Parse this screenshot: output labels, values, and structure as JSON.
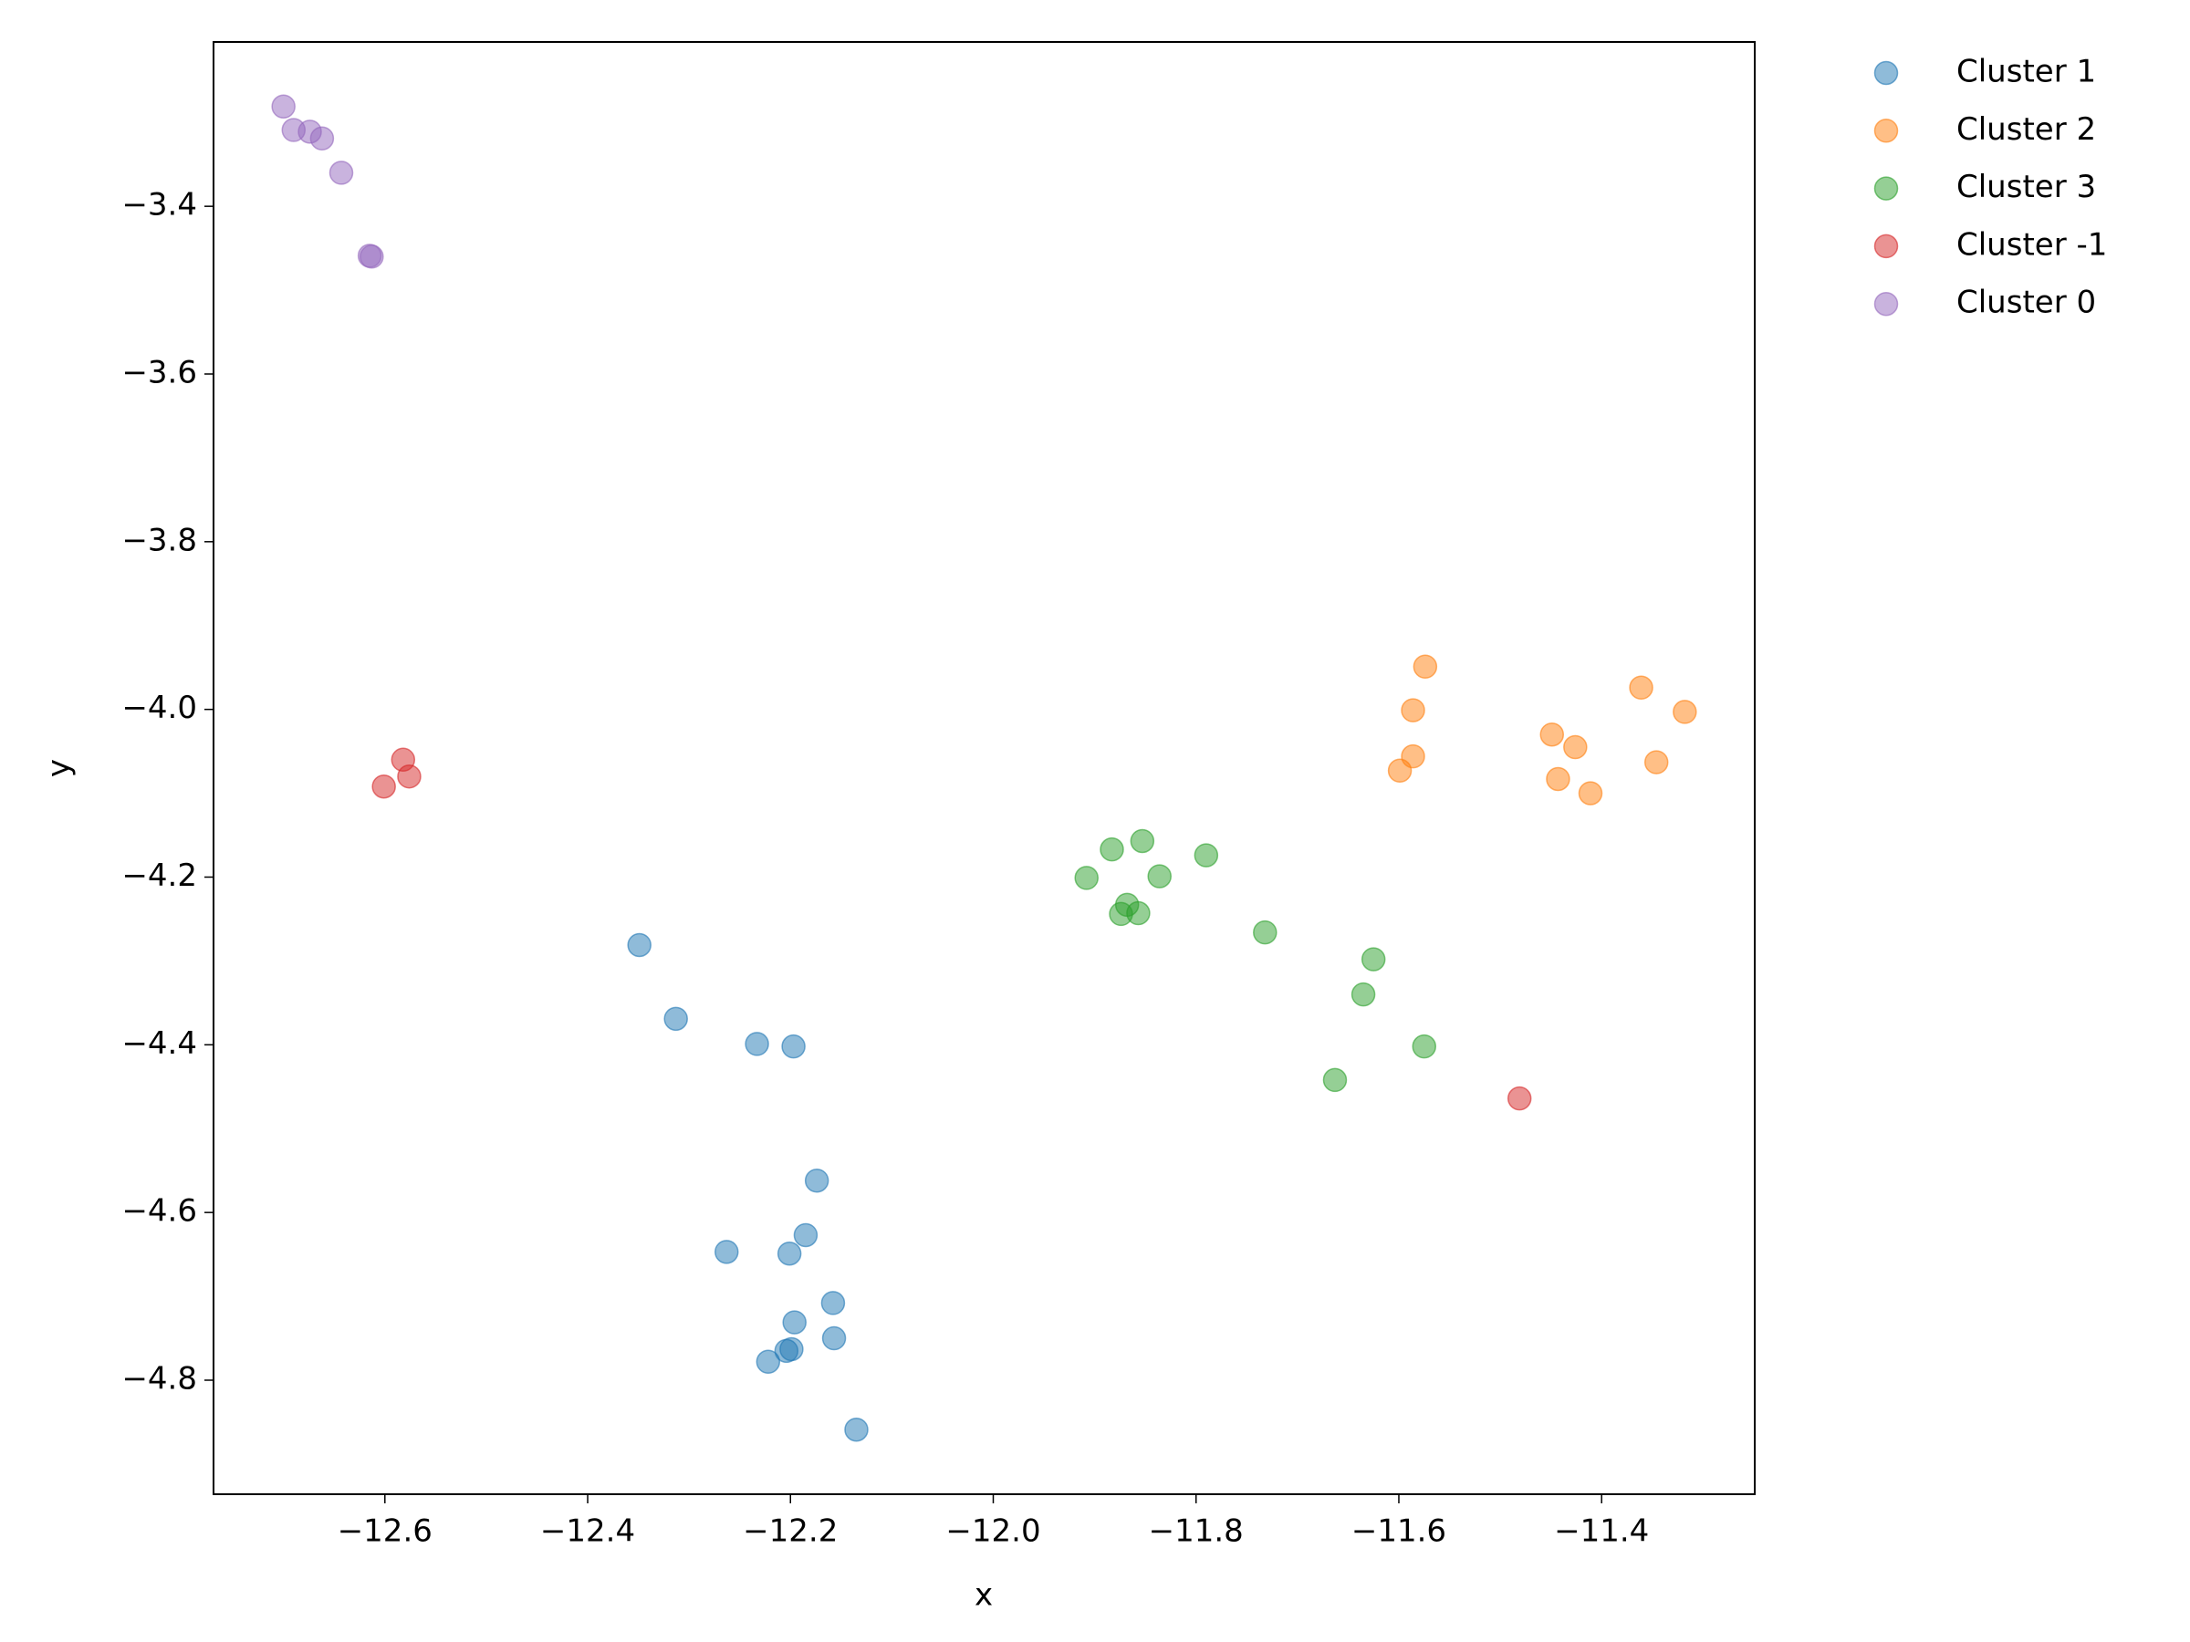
{
  "chart_data": {
    "type": "scatter",
    "xlabel": "x",
    "ylabel": "y",
    "xlim": [
      -12.769,
      -11.249
    ],
    "ylim": [
      -4.936,
      -3.204
    ],
    "xticks": [
      {
        "value": -12.6,
        "label": "−12.6"
      },
      {
        "value": -12.4,
        "label": "−12.4"
      },
      {
        "value": -12.2,
        "label": "−12.2"
      },
      {
        "value": -12.0,
        "label": "−12.0"
      },
      {
        "value": -11.8,
        "label": "−11.8"
      },
      {
        "value": -11.6,
        "label": "−11.6"
      },
      {
        "value": -11.4,
        "label": "−11.4"
      }
    ],
    "yticks": [
      {
        "value": -3.4,
        "label": "−3.4"
      },
      {
        "value": -3.6,
        "label": "−3.6"
      },
      {
        "value": -3.8,
        "label": "−3.8"
      },
      {
        "value": -4.0,
        "label": "−4.0"
      },
      {
        "value": -4.2,
        "label": "−4.2"
      },
      {
        "value": -4.4,
        "label": "−4.4"
      },
      {
        "value": -4.6,
        "label": "−4.6"
      },
      {
        "value": -4.8,
        "label": "−4.8"
      }
    ],
    "legend": "outside-upper-right",
    "series": [
      {
        "name": "Cluster 1",
        "color": "#1f77b4",
        "x": [
          -12.349,
          -12.313,
          -12.233,
          -12.197,
          -12.174,
          -12.263,
          -12.185,
          -12.201,
          -12.158,
          -12.196,
          -12.157,
          -12.199,
          -12.204,
          -12.222,
          -12.135
        ],
        "values": [
          -4.281,
          -4.369,
          -4.399,
          -4.402,
          -4.562,
          -4.647,
          -4.627,
          -4.649,
          -4.708,
          -4.731,
          -4.75,
          -4.763,
          -4.765,
          -4.778,
          -4.859
        ]
      },
      {
        "name": "Cluster 2",
        "color": "#ff7f0e",
        "x": [
          -11.574,
          -11.586,
          -11.586,
          -11.599,
          -11.449,
          -11.426,
          -11.443,
          -11.411,
          -11.361,
          -11.346,
          -11.318
        ],
        "values": [
          -3.949,
          -4.001,
          -4.056,
          -4.073,
          -4.03,
          -4.045,
          -4.083,
          -4.1,
          -3.974,
          -4.063,
          -4.003
        ]
      },
      {
        "name": "Cluster 3",
        "color": "#2ca02c",
        "x": [
          -11.908,
          -11.883,
          -11.853,
          -11.836,
          -11.79,
          -11.868,
          -11.874,
          -11.857,
          -11.732,
          -11.625,
          -11.635,
          -11.575,
          -11.663
        ],
        "values": [
          -4.201,
          -4.167,
          -4.157,
          -4.199,
          -4.174,
          -4.233,
          -4.244,
          -4.243,
          -4.266,
          -4.298,
          -4.34,
          -4.402,
          -4.442
        ]
      },
      {
        "name": "Cluster -1",
        "color": "#d62728",
        "x": [
          -12.582,
          -12.576,
          -12.601,
          -11.481
        ],
        "values": [
          -4.06,
          -4.08,
          -4.092,
          -4.464
        ]
      },
      {
        "name": "Cluster 0",
        "color": "#9467bd",
        "x": [
          -12.7,
          -12.69,
          -12.674,
          -12.662,
          -12.643,
          -12.615,
          -12.613
        ],
        "values": [
          -3.281,
          -3.309,
          -3.311,
          -3.319,
          -3.36,
          -3.459,
          -3.46
        ]
      }
    ]
  }
}
